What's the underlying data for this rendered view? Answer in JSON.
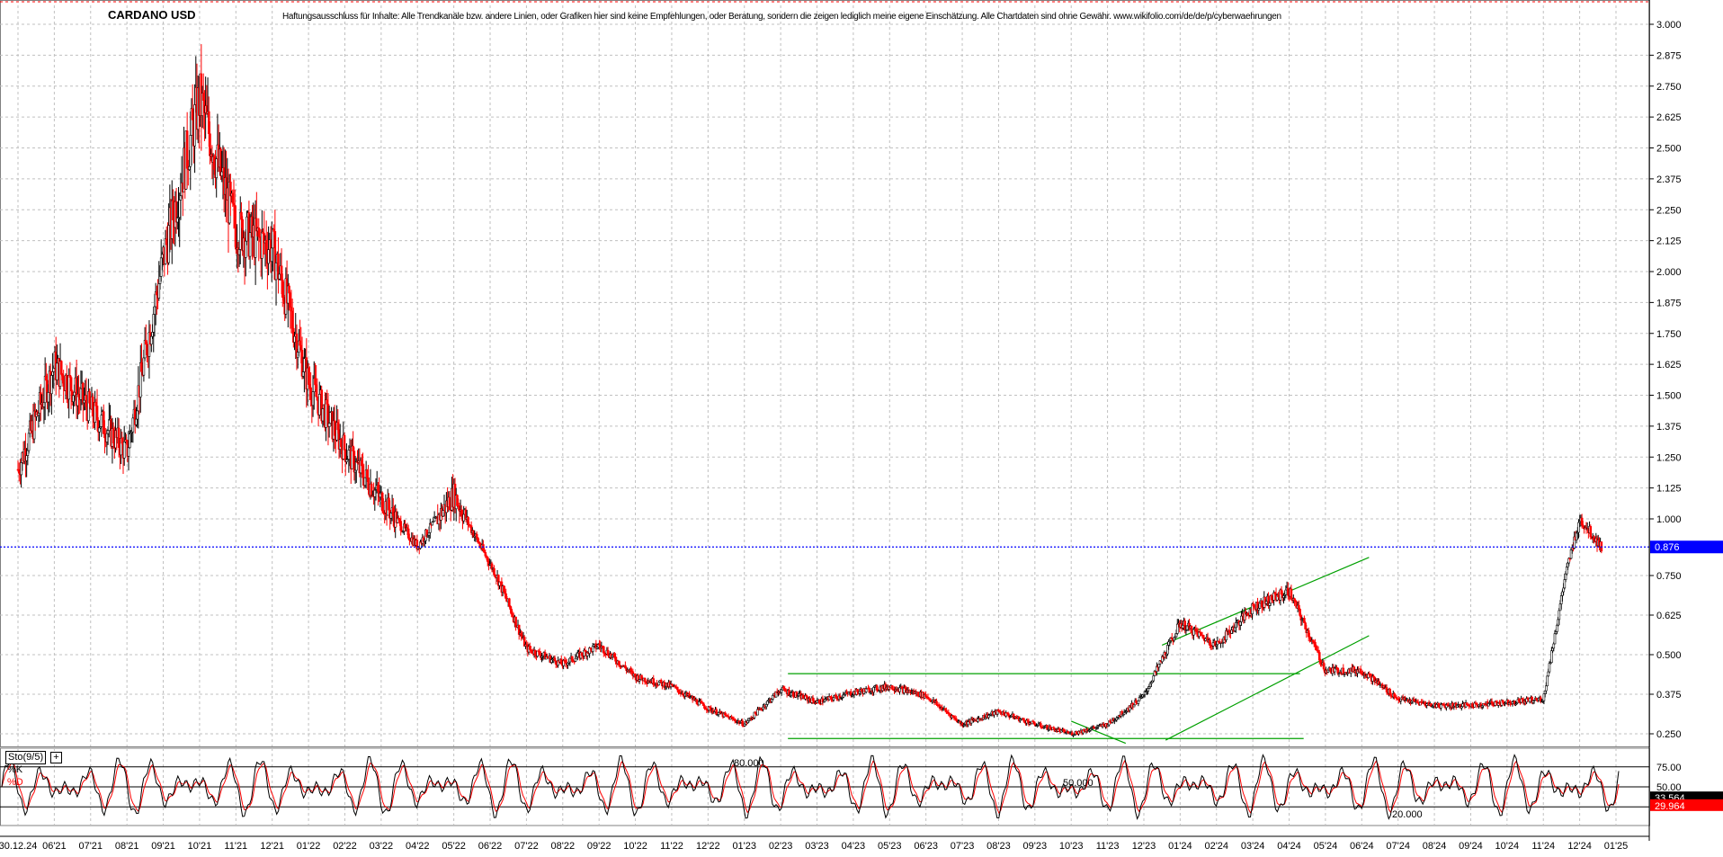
{
  "header": {
    "title": "CARDANO USD",
    "disclaimer": "Haftungsausschluss für Inhalte: Alle Trendkanäle bzw. andere Linien, oder Grafiken hier sind keine Empfehlungen, oder Beratung, sondern die zeigen lediglich meine eigene Einschätzung. Alle Chartdaten sind ohne Gewähr. www.wikifolio.com/de/de/p/cyberwaehrungen"
  },
  "indicator": {
    "name": "Sto(9/5)",
    "k_label": "%K",
    "d_label": "%D",
    "level_high": "80.000",
    "level_mid": "50.000",
    "level_low": "20.000",
    "k_value": "33.564",
    "d_value": "29.964"
  },
  "colors": {
    "up_candle": "#000000",
    "down_candle": "#ff0000",
    "trendline": "#00a000",
    "price_line": "#0000ff",
    "grid": "#c0c0c0"
  },
  "chart_data": [
    {
      "type": "candlestick",
      "title": "CARDANO USD",
      "x_tick_labels": [
        "30.12.24",
        "06'21",
        "07'21",
        "08'21",
        "09'21",
        "10'21",
        "11'21",
        "12'21",
        "01'22",
        "02'22",
        "03'22",
        "04'22",
        "05'22",
        "06'22",
        "07'22",
        "08'22",
        "09'22",
        "10'22",
        "11'22",
        "12'22",
        "01'23",
        "02'23",
        "03'23",
        "04'23",
        "05'23",
        "06'23",
        "07'23",
        "08'23",
        "09'23",
        "10'23",
        "11'23",
        "12'23",
        "01'24",
        "02'24",
        "03'24",
        "04'24",
        "05'24",
        "06'24",
        "07'24",
        "08'24",
        "09'24",
        "10'24",
        "11'24",
        "12'24",
        "01'25"
      ],
      "y_tick_labels": [
        "3.000",
        "2.875",
        "2.750",
        "2.625",
        "2.500",
        "2.375",
        "2.250",
        "2.125",
        "2.000",
        "1.875",
        "1.750",
        "1.625",
        "1.500",
        "1.375",
        "1.250",
        "1.125",
        "1.000",
        "0.750",
        "0.625",
        "0.500",
        "0.375",
        "0.250"
      ],
      "ylim": [
        0.21,
        3.04
      ],
      "current_price": 0.876,
      "current_price_label": "0.876",
      "series": [
        {
          "x": [
            0,
            1,
            2,
            3,
            4,
            5,
            6,
            7,
            8,
            9,
            10,
            11,
            12,
            13,
            14,
            15,
            16,
            17,
            18,
            19,
            20,
            21,
            22,
            23,
            24,
            25,
            26,
            27,
            28,
            29,
            30,
            31,
            32,
            33,
            34,
            35,
            36,
            37,
            38,
            39,
            40,
            41,
            42,
            43,
            43.6
          ],
          "close": [
            1.2,
            1.62,
            1.44,
            1.27,
            2.05,
            2.7,
            2.17,
            2.1,
            1.55,
            1.28,
            1.08,
            0.88,
            1.1,
            0.8,
            0.52,
            0.47,
            0.53,
            0.43,
            0.4,
            0.33,
            0.28,
            0.39,
            0.35,
            0.38,
            0.4,
            0.37,
            0.28,
            0.32,
            0.28,
            0.25,
            0.28,
            0.37,
            0.6,
            0.53,
            0.65,
            0.7,
            0.45,
            0.45,
            0.36,
            0.34,
            0.34,
            0.35,
            0.36,
            1.0,
            0.876
          ]
        }
      ],
      "trendlines": [
        {
          "name": "channel-top",
          "points": [
            [
              21.2,
              0.44
            ],
            [
              35.3,
              0.44
            ]
          ]
        },
        {
          "name": "channel-bottom",
          "points": [
            [
              21.2,
              0.235
            ],
            [
              35.4,
              0.235
            ]
          ]
        },
        {
          "name": "rising-upper",
          "points": [
            [
              31.5,
              0.53
            ],
            [
              37.2,
              0.83
            ]
          ]
        },
        {
          "name": "rising-lower",
          "points": [
            [
              31.6,
              0.23
            ],
            [
              37.2,
              0.56
            ]
          ]
        },
        {
          "name": "down-wedge",
          "points": [
            [
              29.0,
              0.29
            ],
            [
              30.5,
              0.22
            ]
          ]
        }
      ]
    },
    {
      "type": "line",
      "title": "Sto(9/5)",
      "ylim": [
        0,
        100
      ],
      "reference_levels": [
        80,
        50,
        20
      ],
      "series": [
        {
          "name": "%K",
          "last": 33.564
        },
        {
          "name": "%D",
          "last": 29.964
        }
      ]
    }
  ]
}
